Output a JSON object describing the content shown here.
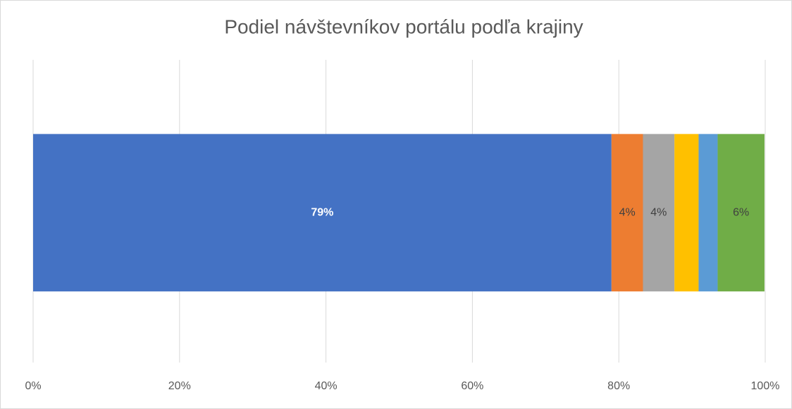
{
  "chart_data": {
    "type": "stacked-bar-horizontal",
    "title": "Podiel návštevníkov portálu podľa krajiny",
    "categories": [
      null
    ],
    "series": [
      {
        "color": "#4472c4",
        "values": [
          79
        ],
        "value_labels": [
          "79%"
        ],
        "label_color": "#ffffff"
      },
      {
        "color": "#ed7d31",
        "values": [
          4.3
        ],
        "value_labels": [
          "4%"
        ],
        "label_color": "#404040"
      },
      {
        "color": "#a5a5a5",
        "values": [
          4.3
        ],
        "value_labels": [
          "4%"
        ],
        "label_color": "#404040"
      },
      {
        "color": "#ffc000",
        "values": [
          3.3
        ],
        "value_labels": [
          null
        ],
        "label_color": "#404040"
      },
      {
        "color": "#5b9bd5",
        "values": [
          2.6
        ],
        "value_labels": [
          null
        ],
        "label_color": "#404040"
      },
      {
        "color": "#70ad47",
        "values": [
          6.4
        ],
        "value_labels": [
          "6%"
        ],
        "label_color": "#404040"
      }
    ],
    "xlim": [
      0,
      100
    ],
    "xticks": [
      {
        "value": 0,
        "label": "0%"
      },
      {
        "value": 20,
        "label": "20%"
      },
      {
        "value": 40,
        "label": "40%"
      },
      {
        "value": 60,
        "label": "60%"
      },
      {
        "value": 80,
        "label": "80%"
      },
      {
        "value": 100,
        "label": "100%"
      }
    ],
    "grid": true
  }
}
